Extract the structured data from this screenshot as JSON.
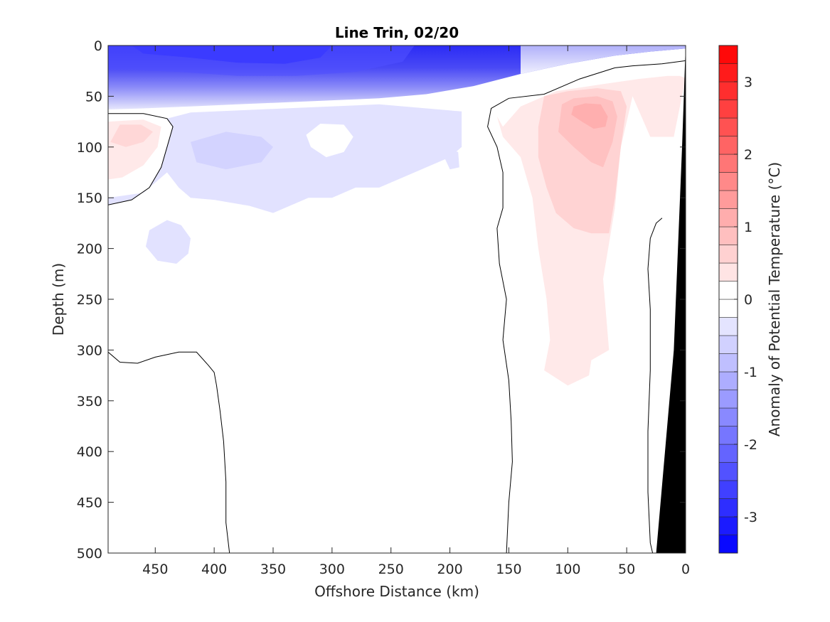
{
  "chart_data": {
    "type": "contour",
    "title": "Line Trin, 02/20",
    "xlabel": "Offshore Distance (km)",
    "ylabel": "Depth (m)",
    "xlim": [
      490,
      0
    ],
    "x_reversed": true,
    "ylim": [
      0,
      500
    ],
    "y_reversed": true,
    "x_ticks": [
      450,
      400,
      350,
      300,
      250,
      200,
      150,
      100,
      50,
      0
    ],
    "y_ticks": [
      0,
      50,
      100,
      150,
      200,
      250,
      300,
      350,
      400,
      450,
      500
    ],
    "grid": false,
    "colorbar": {
      "label": "Anomaly of Potential Temperature (°C)",
      "range": [
        -3.5,
        3.5
      ],
      "step": 0.25,
      "ticks": [
        -3,
        -2,
        -1,
        0,
        1,
        2,
        3
      ],
      "tick_labels": [
        "-3",
        "-2",
        "-1",
        "0",
        "1",
        "2",
        "3"
      ],
      "colormap": "blue-white-red",
      "cold_color": "#0000ff",
      "warm_color": "#ff0000",
      "neutral_color": "#ffffff"
    },
    "bathymetry_color": "#000000",
    "contour_fill": [
      {
        "level_range": [
          -3.5,
          -2.75
        ],
        "region": "surface cold core",
        "x_range": [
          470,
          290
        ],
        "depth_range": [
          0,
          20
        ]
      },
      {
        "level_range": [
          -1.75,
          -0.25
        ],
        "region": "surface cold layer",
        "x_range": [
          490,
          0
        ],
        "depth_range": [
          0,
          65
        ]
      },
      {
        "level_range": [
          -0.5,
          -0.25
        ],
        "region": "subsurface cold patch",
        "x_range": [
          490,
          190
        ],
        "depth_range": [
          65,
          165
        ]
      },
      {
        "level_range": [
          -0.5,
          -0.25
        ],
        "region": "small cold eddy",
        "x_range": [
          460,
          420
        ],
        "depth_range": [
          170,
          215
        ]
      },
      {
        "level_range": [
          0.25,
          0.5
        ],
        "region": "western warm lens",
        "x_range": [
          490,
          440
        ],
        "depth_range": [
          75,
          130
        ]
      },
      {
        "level_range": [
          0.25,
          1.0
        ],
        "region": "eastern warm core",
        "x_range": [
          160,
          50
        ],
        "depth_range": [
          40,
          340
        ]
      }
    ],
    "zero_contours": [
      {
        "name": "west upper",
        "points": [
          [
            490,
            67
          ],
          [
            460,
            67
          ],
          [
            440,
            72
          ],
          [
            435,
            80
          ],
          [
            440,
            100
          ],
          [
            445,
            120
          ],
          [
            455,
            140
          ],
          [
            470,
            152
          ],
          [
            490,
            157
          ]
        ]
      },
      {
        "name": "west lower",
        "points": [
          [
            490,
            302
          ],
          [
            480,
            312
          ],
          [
            465,
            313
          ],
          [
            450,
            307
          ],
          [
            430,
            302
          ],
          [
            415,
            302
          ],
          [
            405,
            315
          ],
          [
            400,
            322
          ],
          [
            398,
            335
          ],
          [
            395,
            360
          ],
          [
            392,
            390
          ],
          [
            390,
            430
          ],
          [
            390,
            470
          ],
          [
            387,
            500
          ]
        ]
      },
      {
        "name": "central front",
        "points": [
          [
            60,
            22
          ],
          [
            90,
            33
          ],
          [
            120,
            48
          ],
          [
            150,
            52
          ],
          [
            165,
            62
          ],
          [
            168,
            80
          ],
          [
            160,
            100
          ],
          [
            155,
            125
          ],
          [
            155,
            160
          ],
          [
            160,
            180
          ],
          [
            158,
            215
          ],
          [
            152,
            250
          ],
          [
            155,
            290
          ],
          [
            150,
            330
          ],
          [
            148,
            370
          ],
          [
            147,
            410
          ],
          [
            150,
            450
          ],
          [
            152,
            500
          ]
        ]
      },
      {
        "name": "shelf edge",
        "points": [
          [
            0,
            15
          ],
          [
            20,
            18
          ],
          [
            45,
            20
          ],
          [
            60,
            22
          ]
        ]
      },
      {
        "name": "coastal",
        "points": [
          [
            20,
            170
          ],
          [
            25,
            175
          ],
          [
            30,
            190
          ],
          [
            32,
            220
          ],
          [
            30,
            260
          ],
          [
            30,
            320
          ],
          [
            32,
            380
          ],
          [
            32,
            440
          ],
          [
            30,
            490
          ],
          [
            28,
            500
          ]
        ]
      }
    ]
  }
}
